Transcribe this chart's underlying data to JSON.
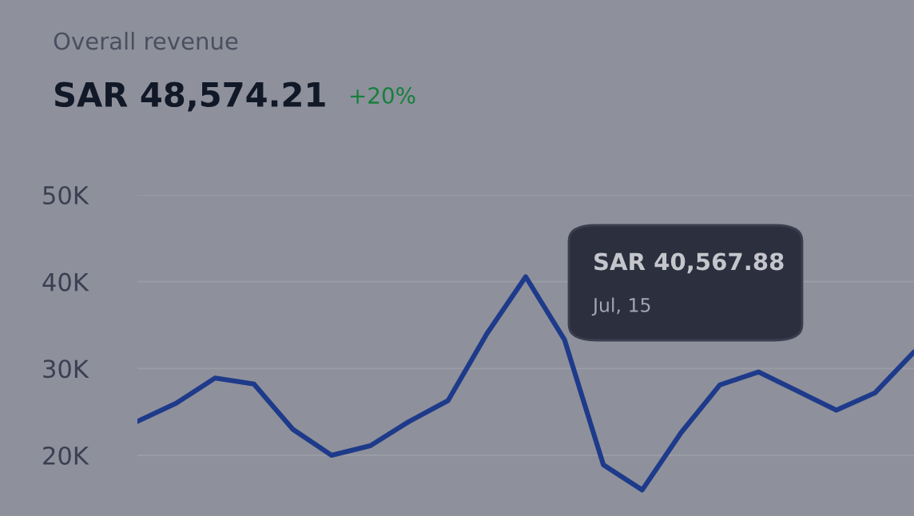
{
  "chart_data": {
    "type": "line",
    "title": "Overall revenue",
    "subtitle": "SAR 48,574.21",
    "annotations": [
      "+20%",
      "SAR 40,567.88",
      "Jul, 15"
    ],
    "categories": [
      null,
      null,
      null,
      null,
      null,
      null,
      null,
      null,
      null,
      null,
      null,
      null,
      null,
      null,
      null,
      null,
      null,
      null,
      null,
      null,
      null
    ],
    "series": [
      {
        "color": "#1e3a8a",
        "values": [
          23900,
          26000,
          28900,
          28200,
          23000,
          20000,
          21100,
          23900,
          26300,
          34000,
          40567.88,
          33300,
          18900,
          16000,
          22600,
          28100,
          29600,
          27400,
          25200,
          27200,
          31900
        ]
      }
    ],
    "ylim": [
      13000,
      50000
    ],
    "yticks": [
      {
        "value": 20000,
        "label": "20K"
      },
      {
        "value": 30000,
        "label": "30K"
      },
      {
        "value": 40000,
        "label": "40K"
      },
      {
        "value": 50000,
        "label": "50K"
      }
    ],
    "grid": "y",
    "tick_labels": "y",
    "marker": "none",
    "line_style": "solid"
  }
}
